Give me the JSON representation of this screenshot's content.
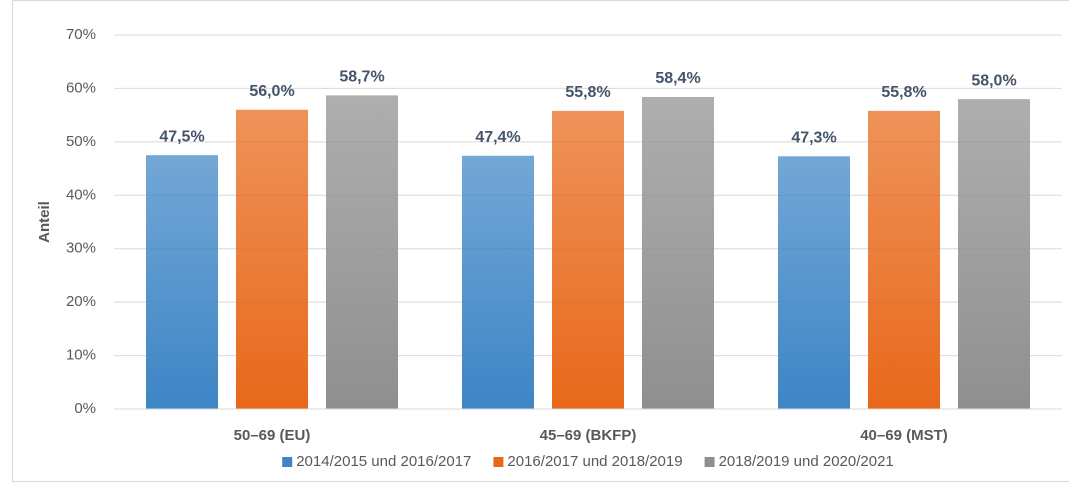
{
  "chart_data": {
    "type": "bar",
    "y_label": "Anteil",
    "categories": [
      "50–69 (EU)",
      "45–69 (BKFP)",
      "40–69 (MST)"
    ],
    "series": [
      {
        "name": "2014/2015 und 2016/2017",
        "color": "#3d85c6",
        "values": [
          47.5,
          47.4,
          47.3
        ],
        "value_labels": [
          "47,5%",
          "47,4%",
          "47,3%"
        ]
      },
      {
        "name": "2016/2017 und 2018/2019",
        "color": "#e8681a",
        "values": [
          56.0,
          55.8,
          55.8
        ],
        "value_labels": [
          "56,0%",
          "55,8%",
          "55,8%"
        ]
      },
      {
        "name": "2018/2019 und 2020/2021",
        "color": "#8f8f8f",
        "values": [
          58.7,
          58.4,
          58.0
        ],
        "value_labels": [
          "58,7%",
          "58,4%",
          "58,0%"
        ]
      }
    ],
    "ylim": [
      0,
      70
    ],
    "yticks": [
      {
        "value": 0,
        "label": "0%"
      },
      {
        "value": 10,
        "label": "10%"
      },
      {
        "value": 20,
        "label": "20%"
      },
      {
        "value": 30,
        "label": "30%"
      },
      {
        "value": 40,
        "label": "40%"
      },
      {
        "value": 50,
        "label": "50%"
      },
      {
        "value": 60,
        "label": "60%"
      },
      {
        "value": 70,
        "label": "70%"
      }
    ],
    "grid": true,
    "legend": "bottom"
  }
}
